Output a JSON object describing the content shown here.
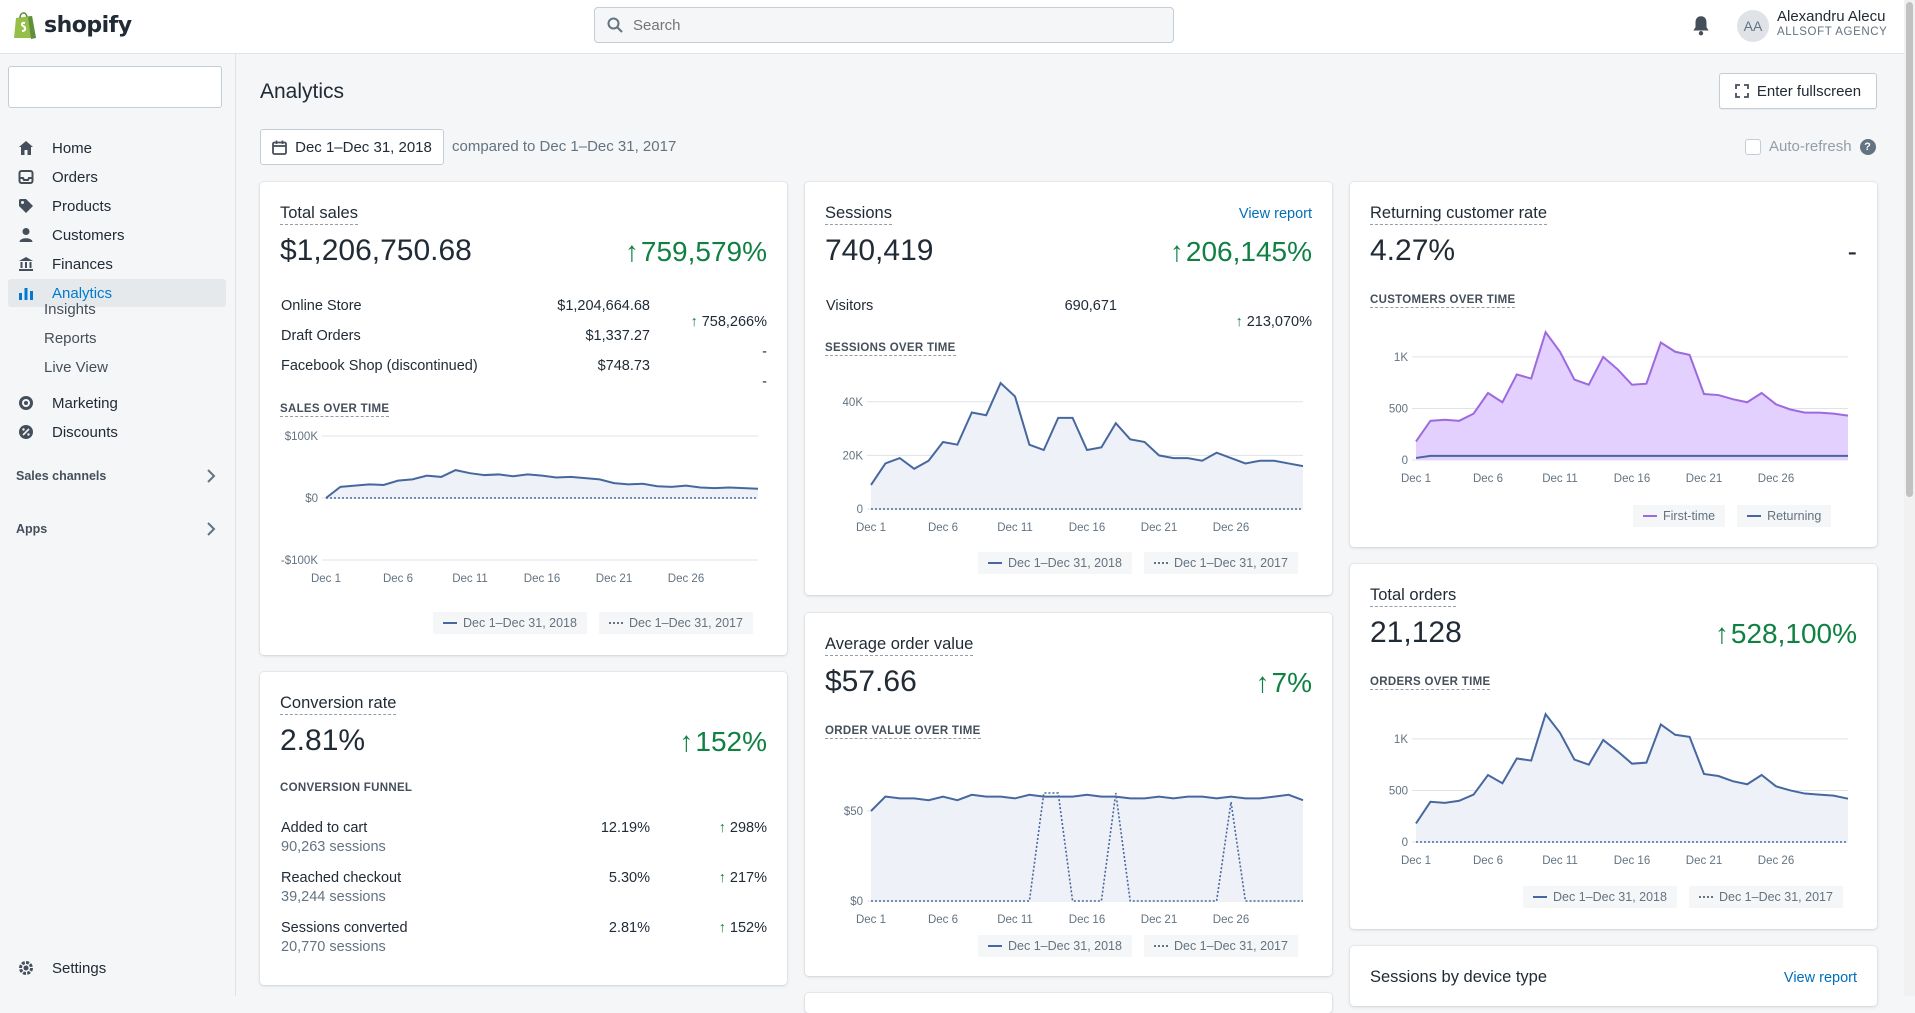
{
  "brand": {
    "name": "shopify"
  },
  "search": {
    "placeholder": "Search"
  },
  "user": {
    "initials": "AA",
    "name": "Alexandru Alecu",
    "store": "ALLSOFT AGENCY"
  },
  "sidebar": {
    "items": [
      {
        "label": "Home",
        "icon": "home-icon"
      },
      {
        "label": "Orders",
        "icon": "orders-icon"
      },
      {
        "label": "Products",
        "icon": "tag-icon"
      },
      {
        "label": "Customers",
        "icon": "person-icon"
      },
      {
        "label": "Finances",
        "icon": "bank-icon"
      },
      {
        "label": "Analytics",
        "icon": "bar-chart-icon",
        "active": true
      },
      {
        "label": "Marketing",
        "icon": "target-icon"
      },
      {
        "label": "Discounts",
        "icon": "discount-icon"
      }
    ],
    "analytics_sub": [
      "Insights",
      "Reports",
      "Live View"
    ],
    "sections": [
      "Sales channels",
      "Apps"
    ],
    "settings": "Settings"
  },
  "page": {
    "title": "Analytics",
    "fullscreen": "Enter fullscreen",
    "date_range": "Dec 1–Dec 31, 2018",
    "compared": "compared to Dec 1–Dec 31, 2017",
    "auto_refresh": "Auto-refresh",
    "help": "?"
  },
  "axis_dates": [
    "Dec 1",
    "Dec 6",
    "Dec 11",
    "Dec 16",
    "Dec 21",
    "Dec 26"
  ],
  "legend_default": [
    "Dec 1–Dec 31, 2018",
    "Dec 1–Dec 31, 2017"
  ],
  "total_sales": {
    "title": "Total sales",
    "value": "$1,206,750.68",
    "change": "759,579%",
    "rows": [
      {
        "label": "Online Store",
        "amount": "$1,204,664.68",
        "change": "758,266%"
      },
      {
        "label": "Draft Orders",
        "amount": "$1,337.27",
        "change": "-"
      },
      {
        "label": "Facebook Shop (discontinued)",
        "amount": "$748.73",
        "change": "-"
      }
    ],
    "chart_label": "SALES OVER TIME",
    "y_ticks": [
      "$100K",
      "$0",
      "-$100K"
    ]
  },
  "sessions": {
    "title": "Sessions",
    "view_report": "View report",
    "value": "740,419",
    "change": "206,145%",
    "rows": [
      {
        "label": "Visitors",
        "amount": "690,671",
        "change": "213,070%"
      }
    ],
    "chart_label": "SESSIONS OVER TIME",
    "y_ticks": [
      "40K",
      "20K",
      "0"
    ]
  },
  "returning": {
    "title": "Returning customer rate",
    "value": "4.27%",
    "change": "-",
    "chart_label": "CUSTOMERS OVER TIME",
    "y_ticks": [
      "1K",
      "500",
      "0"
    ],
    "legend": [
      "First-time",
      "Returning"
    ],
    "colors": {
      "first": "#9c6ade",
      "returning": "#47c1bf"
    }
  },
  "conversion": {
    "title": "Conversion rate",
    "value": "2.81%",
    "change": "152%",
    "funnel_label": "CONVERSION FUNNEL",
    "rows": [
      {
        "label": "Added to cart",
        "sub": "90,263 sessions",
        "rate": "12.19%",
        "change": "298%"
      },
      {
        "label": "Reached checkout",
        "sub": "39,244 sessions",
        "rate": "5.30%",
        "change": "217%"
      },
      {
        "label": "Sessions converted",
        "sub": "20,770 sessions",
        "rate": "2.81%",
        "change": "152%"
      }
    ]
  },
  "aov": {
    "title": "Average order value",
    "value": "$57.66",
    "change": "7%",
    "chart_label": "ORDER VALUE OVER TIME",
    "y_ticks": [
      "$50",
      "$0"
    ]
  },
  "orders": {
    "title": "Total orders",
    "value": "21,128",
    "change": "528,100%",
    "chart_label": "ORDERS OVER TIME",
    "y_ticks": [
      "1K",
      "500",
      "0"
    ]
  },
  "device": {
    "title": "Sessions by device type",
    "view_report": "View report"
  },
  "colors": {
    "accent": "#007ace",
    "positive": "#108043",
    "line": "#47689f"
  },
  "chart_data": [
    {
      "type": "line",
      "title": "SALES OVER TIME",
      "ylim": [
        -100000,
        100000
      ],
      "series": [
        {
          "name": "Dec 1–Dec 31, 2018",
          "values": [
            0,
            18000,
            20000,
            22000,
            21000,
            28000,
            30000,
            36000,
            34000,
            45000,
            40000,
            37000,
            38000,
            35000,
            38000,
            36000,
            33000,
            34000,
            32000,
            30000,
            24000,
            22000,
            23000,
            19000,
            18000,
            20000,
            17000,
            16000,
            17000,
            16000,
            15000
          ]
        },
        {
          "name": "Dec 1–Dec 31, 2017",
          "values": [
            0,
            0,
            0,
            0,
            0,
            0,
            0,
            0,
            0,
            0,
            0,
            0,
            0,
            0,
            0,
            0,
            0,
            0,
            0,
            0,
            0,
            0,
            0,
            0,
            0,
            0,
            0,
            0,
            0,
            0,
            0
          ]
        }
      ]
    },
    {
      "type": "line",
      "title": "SESSIONS OVER TIME",
      "ylim": [
        0,
        50000
      ],
      "series": [
        {
          "name": "Dec 1–Dec 31, 2018",
          "values": [
            9000,
            17000,
            19000,
            15000,
            18000,
            25000,
            24000,
            36000,
            35000,
            47000,
            42000,
            24000,
            22000,
            34000,
            34000,
            22000,
            23000,
            32000,
            26000,
            25000,
            20000,
            19000,
            19000,
            18000,
            21000,
            19000,
            17000,
            18000,
            18000,
            17000,
            16000
          ]
        },
        {
          "name": "Dec 1–Dec 31, 2017",
          "values": [
            0,
            0,
            0,
            0,
            0,
            0,
            0,
            0,
            0,
            0,
            0,
            0,
            0,
            0,
            0,
            0,
            0,
            0,
            0,
            0,
            0,
            0,
            0,
            0,
            0,
            0,
            0,
            0,
            0,
            0,
            0
          ]
        }
      ]
    },
    {
      "type": "area",
      "title": "CUSTOMERS OVER TIME",
      "ylim": [
        0,
        1300
      ],
      "series": [
        {
          "name": "First-time",
          "values": [
            180,
            380,
            390,
            380,
            450,
            650,
            560,
            830,
            790,
            1240,
            1050,
            780,
            730,
            1000,
            880,
            730,
            740,
            1140,
            1050,
            1020,
            640,
            630,
            590,
            560,
            650,
            540,
            490,
            460,
            460,
            450,
            430
          ]
        },
        {
          "name": "Returning",
          "values": [
            20,
            40,
            40,
            40,
            40,
            40,
            40,
            40,
            40,
            40,
            40,
            40,
            40,
            40,
            40,
            40,
            40,
            40,
            40,
            40,
            40,
            40,
            40,
            40,
            40,
            40,
            40,
            40,
            40,
            40,
            40
          ]
        }
      ]
    },
    {
      "type": "line",
      "title": "ORDER VALUE OVER TIME",
      "ylim": [
        0,
        80
      ],
      "series": [
        {
          "name": "Dec 1–Dec 31, 2018",
          "values": [
            50,
            58,
            57,
            57,
            56,
            58,
            56,
            59,
            58,
            58,
            57,
            59,
            58,
            58,
            58,
            59,
            58,
            58,
            57,
            57,
            58,
            57,
            58,
            58,
            57,
            58,
            57,
            57,
            58,
            59,
            56
          ]
        },
        {
          "name": "Dec 1–Dec 31, 2017",
          "values": [
            0,
            0,
            0,
            0,
            0,
            0,
            0,
            0,
            0,
            0,
            0,
            0,
            60,
            60,
            0,
            0,
            0,
            60,
            0,
            0,
            0,
            0,
            0,
            0,
            0,
            55,
            0,
            0,
            0,
            0,
            0
          ]
        }
      ]
    },
    {
      "type": "line",
      "title": "ORDERS OVER TIME",
      "ylim": [
        0,
        1300
      ],
      "series": [
        {
          "name": "Dec 1–Dec 31, 2018",
          "values": [
            180,
            390,
            380,
            400,
            460,
            650,
            570,
            810,
            790,
            1240,
            1060,
            800,
            750,
            990,
            880,
            760,
            770,
            1140,
            1040,
            1020,
            660,
            640,
            590,
            560,
            650,
            540,
            500,
            470,
            460,
            450,
            420
          ]
        },
        {
          "name": "Dec 1–Dec 31, 2017",
          "values": [
            0,
            0,
            0,
            0,
            0,
            0,
            0,
            0,
            0,
            0,
            0,
            0,
            0,
            0,
            0,
            0,
            0,
            0,
            0,
            0,
            0,
            0,
            0,
            0,
            0,
            0,
            0,
            0,
            0,
            0,
            0
          ]
        }
      ]
    }
  ]
}
